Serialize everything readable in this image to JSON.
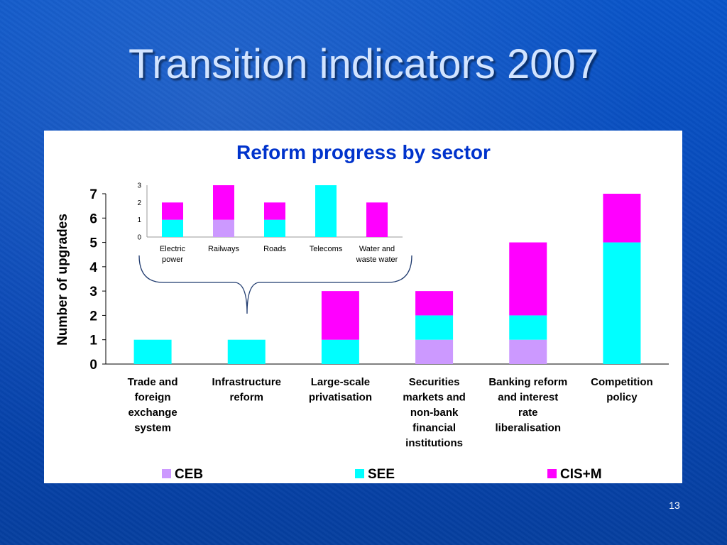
{
  "slide": {
    "title": "Transition indicators 2007",
    "page_number": "13"
  },
  "colors": {
    "CEB": "#cc99ff",
    "SEE": "#00ffff",
    "CIS+M": "#ff00ff",
    "title_text": "#0033cc"
  },
  "chart_data": [
    {
      "type": "bar",
      "stacked": true,
      "title": "Reform progress by sector",
      "ylabel": "Number of upgrades",
      "xlabel": "",
      "ylim": [
        0,
        7
      ],
      "yticks": [
        "0",
        "1",
        "2",
        "3",
        "4",
        "5",
        "6",
        "7"
      ],
      "grid": false,
      "legend_position": "bottom",
      "categories": [
        "Trade and foreign exchange system",
        "Infrastructure reform",
        "Large-scale privatisation",
        "Securities markets and non-bank financial institutions",
        "Banking reform and interest rate liberalisation",
        "Competition policy"
      ],
      "category_lines": [
        [
          "Trade and",
          "foreign",
          "exchange",
          "system"
        ],
        [
          "Infrastructure",
          "reform"
        ],
        [
          "Large-scale",
          "privatisation"
        ],
        [
          "Securities",
          "markets and",
          "non-bank",
          "financial",
          "institutions"
        ],
        [
          "Banking reform",
          "and interest",
          "rate",
          "liberalisation"
        ],
        [
          "Competition",
          "policy"
        ]
      ],
      "series": [
        {
          "name": "CEB",
          "values": [
            0,
            0,
            0,
            1,
            1,
            0
          ]
        },
        {
          "name": "SEE",
          "values": [
            1,
            1,
            1,
            1,
            1,
            5
          ]
        },
        {
          "name": "CIS+M",
          "values": [
            0,
            0,
            2,
            1,
            3,
            2
          ]
        }
      ]
    },
    {
      "type": "bar",
      "stacked": true,
      "title": "",
      "ylim": [
        0,
        3
      ],
      "yticks": [
        "0",
        "1",
        "2",
        "3"
      ],
      "grid": false,
      "categories": [
        "Electric power",
        "Railways",
        "Roads",
        "Telecoms",
        "Water and waste water"
      ],
      "category_lines": [
        [
          "Electric",
          "power"
        ],
        [
          "Railways"
        ],
        [
          "Roads"
        ],
        [
          "Telecoms"
        ],
        [
          "Water and",
          "waste water"
        ]
      ],
      "series": [
        {
          "name": "CEB",
          "values": [
            0,
            1,
            0,
            0,
            0
          ]
        },
        {
          "name": "SEE",
          "values": [
            1,
            0,
            1,
            3,
            0
          ]
        },
        {
          "name": "CIS+M",
          "values": [
            1,
            2,
            1,
            0,
            2
          ]
        }
      ]
    }
  ]
}
